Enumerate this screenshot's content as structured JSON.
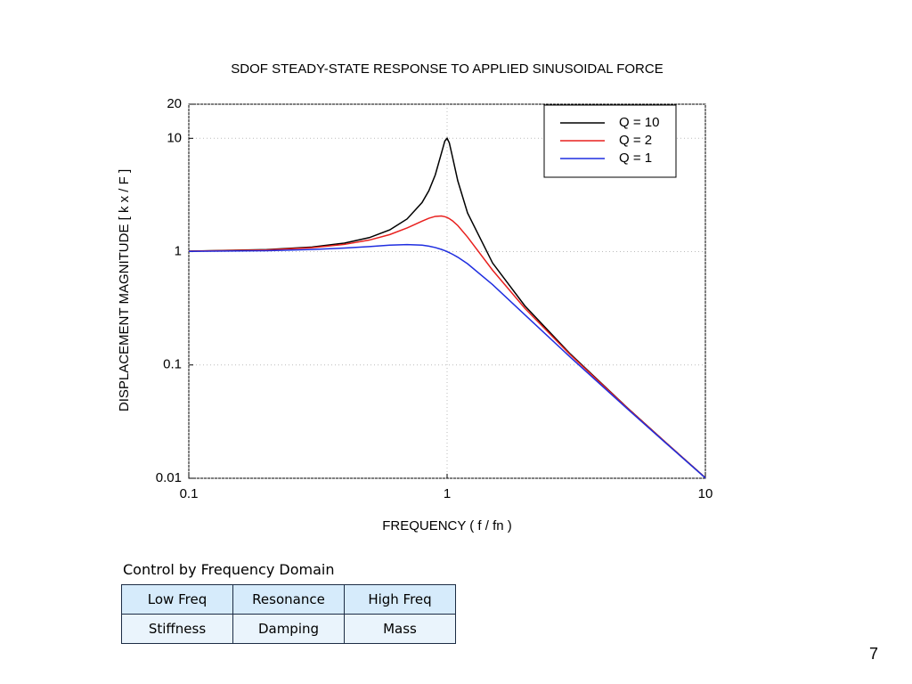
{
  "chart_data": {
    "type": "line",
    "title": "SDOF STEADY-STATE RESPONSE TO APPLIED SINUSOIDAL FORCE",
    "xlabel": "FREQUENCY (  f / fn )",
    "ylabel": "DISPLACEMENT MAGNITUDE [ k x / F ]",
    "x": [
      0.1,
      0.2,
      0.3,
      0.4,
      0.5,
      0.6,
      0.7,
      0.8,
      0.85,
      0.9,
      0.95,
      0.98,
      1.0,
      1.02,
      1.05,
      1.1,
      1.2,
      1.5,
      2,
      3,
      5,
      7,
      10
    ],
    "series": [
      {
        "name": "Q = 10",
        "color": "#000000",
        "values": [
          1.01,
          1.041,
          1.098,
          1.189,
          1.33,
          1.556,
          1.943,
          2.712,
          3.446,
          4.757,
          7.346,
          9.461,
          10,
          9.115,
          6.815,
          4.218,
          2.193,
          0.794,
          0.3326,
          0.1249,
          0.04166,
          0.02083,
          0.0101
        ]
      },
      {
        "name": "Q = 2",
        "color": "#e8201e",
        "values": [
          1.009,
          1.036,
          1.084,
          1.158,
          1.265,
          1.415,
          1.617,
          1.858,
          1.97,
          2.047,
          2.062,
          2.034,
          2,
          1.955,
          1.869,
          1.699,
          1.344,
          0.686,
          0.3162,
          0.1229,
          0.04144,
          0.02078,
          0.01009
        ]
      },
      {
        "name": "Q = 1",
        "color": "#1f2ee0",
        "values": [
          1.005,
          1.02,
          1.044,
          1.075,
          1.109,
          1.14,
          1.155,
          1.14,
          1.118,
          1.087,
          1.047,
          1.02,
          1,
          0.98,
          0.948,
          0.893,
          0.782,
          0.512,
          0.2774,
          0.117,
          0.04079,
          0.02062,
          0.01005
        ]
      }
    ],
    "xlim": [
      0.1,
      10
    ],
    "xticks": [
      0.1,
      1,
      10
    ],
    "ylim": [
      0.01,
      20
    ],
    "yticks": [
      0.01,
      0.1,
      1,
      10,
      20
    ],
    "xscale": "log",
    "yscale": "log",
    "grid": true,
    "legend": "upper right"
  },
  "table": {
    "caption": "Control by Frequency Domain",
    "rows": [
      [
        "Low Freq",
        "Resonance",
        "High Freq"
      ],
      [
        "Stiffness",
        "Damping",
        "Mass"
      ]
    ]
  },
  "page_number": 7
}
